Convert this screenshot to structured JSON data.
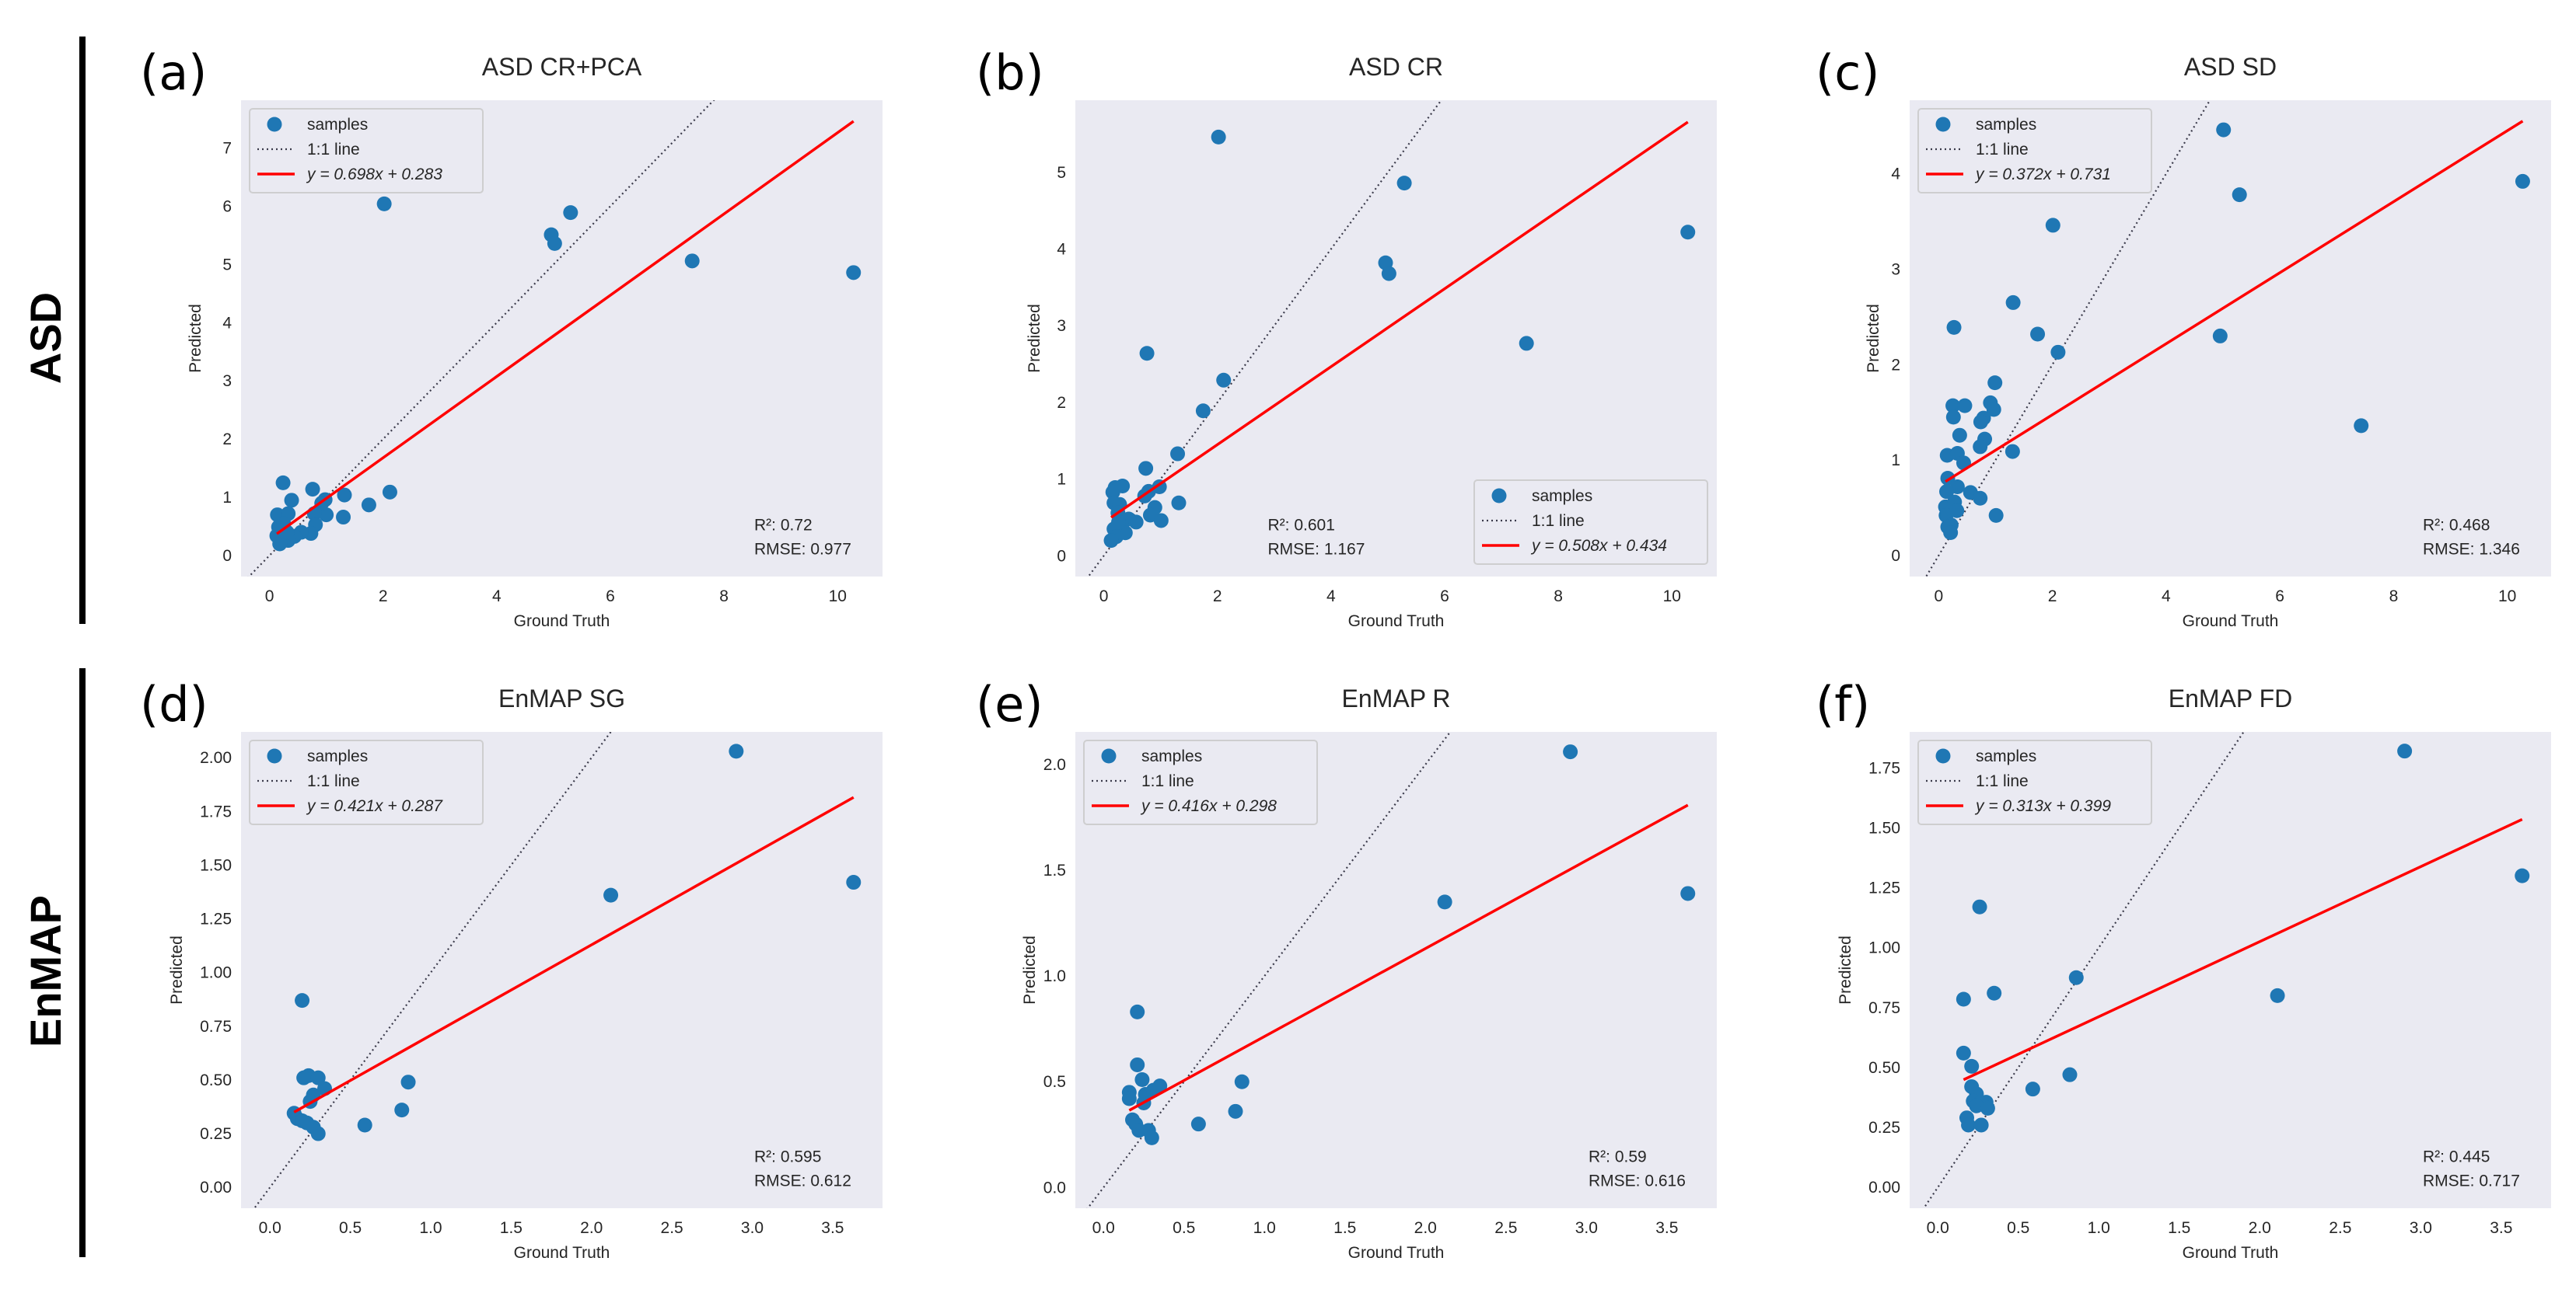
{
  "row_labels": [
    "ASD",
    "EnMAP"
  ],
  "chart_data": [
    {
      "type": "scatter",
      "letter": "(a)",
      "title": "ASD CR+PCA",
      "xlabel": "Ground Truth",
      "ylabel": "Predicted",
      "xlim": [
        -0.5,
        10.79
      ],
      "ylim": [
        -0.36,
        7.82
      ],
      "xticks": [
        0,
        2,
        4,
        6,
        8,
        10
      ],
      "xtick_labels": [
        "0",
        "2",
        "4",
        "6",
        "8",
        "10"
      ],
      "yticks": [
        0,
        1,
        2,
        3,
        4,
        5,
        6,
        7
      ],
      "ytick_labels": [
        "0",
        "1",
        "2",
        "3",
        "4",
        "5",
        "6",
        "7"
      ],
      "grid": false,
      "legend_position": "upper-left",
      "stats_position": "lower-right",
      "legend": [
        "samples",
        "1:1 line",
        "y = 0.698x + 0.283"
      ],
      "fit": {
        "slope": 0.698,
        "intercept": 0.283
      },
      "stats": [
        "R²: 0.72",
        "RMSE: 0.977"
      ],
      "colors": {
        "points": "#1f77b4",
        "fit": "#ff0000",
        "identity": "#3a3a4a",
        "background": "#eaeaf2"
      },
      "x": [
        2.02,
        5.3,
        4.96,
        5.02,
        7.44,
        10.28,
        2.12,
        1.75,
        1.32,
        1.3,
        0.76,
        0.24,
        0.39,
        0.14,
        0.33,
        1.0,
        0.98,
        0.92,
        0.79,
        0.81,
        0.73,
        0.56,
        0.44,
        0.33,
        0.18,
        0.13,
        0.16,
        0.25,
        0.22,
        0.31
      ],
      "y": [
        6.04,
        5.89,
        5.51,
        5.36,
        5.06,
        4.86,
        1.09,
        0.87,
        1.04,
        0.66,
        1.14,
        1.25,
        0.95,
        0.7,
        0.72,
        0.7,
        0.96,
        0.9,
        0.72,
        0.53,
        0.38,
        0.4,
        0.33,
        0.26,
        0.2,
        0.34,
        0.49,
        0.55,
        0.43,
        0.4
      ]
    },
    {
      "type": "scatter",
      "letter": "(b)",
      "title": "ASD CR",
      "xlabel": "Ground Truth",
      "ylabel": "Predicted",
      "xlim": [
        -0.5,
        10.79
      ],
      "ylim": [
        -0.27,
        5.94
      ],
      "xticks": [
        0,
        2,
        4,
        6,
        8,
        10
      ],
      "xtick_labels": [
        "0",
        "2",
        "4",
        "6",
        "8",
        "10"
      ],
      "yticks": [
        0,
        1,
        2,
        3,
        4,
        5
      ],
      "ytick_labels": [
        "0",
        "1",
        "2",
        "3",
        "4",
        "5"
      ],
      "grid": false,
      "legend_position": "lower-right",
      "stats_position": "lower-center",
      "legend": [
        "samples",
        "1:1 line",
        "y = 0.508x + 0.434"
      ],
      "fit": {
        "slope": 0.508,
        "intercept": 0.434
      },
      "stats": [
        "R²: 0.601",
        "RMSE: 1.167"
      ],
      "colors": {
        "points": "#1f77b4",
        "fit": "#ff0000",
        "identity": "#3a3a4a",
        "background": "#eaeaf2"
      },
      "x": [
        2.02,
        5.29,
        10.28,
        4.96,
        5.02,
        7.44,
        0.76,
        2.11,
        1.75,
        1.3,
        0.74,
        1.32,
        0.33,
        0.2,
        0.16,
        0.98,
        0.79,
        0.72,
        0.9,
        0.82,
        1.01,
        0.57,
        0.18,
        0.28,
        0.25,
        0.44,
        0.31,
        0.38,
        0.18,
        0.22,
        0.13,
        0.26
      ],
      "y": [
        5.46,
        4.86,
        4.22,
        3.82,
        3.68,
        2.77,
        2.64,
        2.29,
        1.89,
        1.33,
        1.14,
        0.69,
        0.91,
        0.89,
        0.83,
        0.9,
        0.84,
        0.78,
        0.63,
        0.53,
        0.46,
        0.44,
        0.69,
        0.67,
        0.56,
        0.48,
        0.4,
        0.3,
        0.35,
        0.25,
        0.2,
        0.44
      ]
    },
    {
      "type": "scatter",
      "letter": "(c)",
      "title": "ASD SD",
      "xlabel": "Ground Truth",
      "ylabel": "Predicted",
      "xlim": [
        -0.51,
        10.77
      ],
      "ylim": [
        -0.22,
        4.77
      ],
      "xticks": [
        0,
        2,
        4,
        6,
        8,
        10
      ],
      "xtick_labels": [
        "0",
        "2",
        "4",
        "6",
        "8",
        "10"
      ],
      "yticks": [
        0,
        1,
        2,
        3,
        4
      ],
      "ytick_labels": [
        "0",
        "1",
        "2",
        "3",
        "4"
      ],
      "grid": false,
      "legend_position": "upper-left",
      "stats_position": "lower-right",
      "legend": [
        "samples",
        "1:1 line",
        "y = 0.372x + 0.731"
      ],
      "fit": {
        "slope": 0.372,
        "intercept": 0.731
      },
      "stats": [
        "R²: 0.468",
        "RMSE: 1.346"
      ],
      "colors": {
        "points": "#1f77b4",
        "fit": "#ff0000",
        "identity": "#3a3a4a",
        "background": "#eaeaf2"
      },
      "x": [
        5.01,
        5.29,
        10.27,
        2.01,
        1.31,
        0.27,
        1.74,
        4.95,
        2.1,
        0.99,
        0.25,
        0.46,
        0.26,
        0.91,
        0.97,
        0.79,
        0.74,
        0.37,
        0.81,
        0.73,
        1.3,
        7.43,
        0.15,
        0.33,
        0.44,
        0.16,
        0.33,
        0.14,
        0.56,
        0.73,
        1.01,
        0.12,
        0.28,
        0.32,
        0.13,
        0.22,
        0.16,
        0.21
      ],
      "y": [
        4.46,
        3.78,
        3.92,
        3.46,
        2.65,
        2.39,
        2.32,
        2.3,
        2.13,
        1.81,
        1.57,
        1.57,
        1.45,
        1.6,
        1.53,
        1.44,
        1.4,
        1.26,
        1.22,
        1.14,
        1.09,
        1.36,
        1.05,
        1.07,
        0.97,
        0.81,
        0.72,
        0.67,
        0.66,
        0.6,
        0.42,
        0.51,
        0.56,
        0.47,
        0.42,
        0.32,
        0.3,
        0.24
      ]
    },
    {
      "type": "scatter",
      "letter": "(d)",
      "title": "EnMAP SG",
      "xlabel": "Ground Truth",
      "ylabel": "Predicted",
      "xlim": [
        -0.18,
        3.81
      ],
      "ylim": [
        -0.097,
        2.12
      ],
      "xticks": [
        0,
        0.5,
        1,
        1.5,
        2,
        2.5,
        3,
        3.5
      ],
      "xtick_labels": [
        "0.0",
        "0.5",
        "1.0",
        "1.5",
        "2.0",
        "2.5",
        "3.0",
        "3.5"
      ],
      "yticks": [
        0,
        0.25,
        0.5,
        0.75,
        1,
        1.25,
        1.5,
        1.75,
        2
      ],
      "ytick_labels": [
        "0.00",
        "0.25",
        "0.50",
        "0.75",
        "1.00",
        "1.25",
        "1.50",
        "1.75",
        "2.00"
      ],
      "grid": false,
      "legend_position": "upper-left",
      "stats_position": "lower-right",
      "legend": [
        "samples",
        "1:1 line",
        "y = 0.421x + 0.287"
      ],
      "fit": {
        "slope": 0.421,
        "intercept": 0.287
      },
      "stats": [
        "R²: 0.595",
        "RMSE: 0.612"
      ],
      "colors": {
        "points": "#1f77b4",
        "fit": "#ff0000",
        "identity": "#3a3a4a",
        "background": "#eaeaf2"
      },
      "x": [
        2.9,
        2.12,
        3.63,
        0.2,
        0.21,
        0.24,
        0.3,
        0.86,
        0.34,
        0.27,
        0.25,
        0.82,
        0.59,
        0.15,
        0.17,
        0.2,
        0.23,
        0.27,
        0.3
      ],
      "y": [
        2.03,
        1.36,
        1.42,
        0.87,
        0.51,
        0.52,
        0.51,
        0.49,
        0.46,
        0.43,
        0.4,
        0.36,
        0.29,
        0.345,
        0.32,
        0.31,
        0.3,
        0.28,
        0.25
      ]
    },
    {
      "type": "scatter",
      "letter": "(e)",
      "title": "EnMAP R",
      "xlabel": "Ground Truth",
      "ylabel": "Predicted",
      "xlim": [
        -0.175,
        3.81
      ],
      "ylim": [
        -0.098,
        2.154
      ],
      "xticks": [
        0,
        0.5,
        1,
        1.5,
        2,
        2.5,
        3,
        3.5
      ],
      "xtick_labels": [
        "0.0",
        "0.5",
        "1.0",
        "1.5",
        "2.0",
        "2.5",
        "3.0",
        "3.5"
      ],
      "yticks": [
        0,
        0.5,
        1,
        1.5,
        2
      ],
      "ytick_labels": [
        "0.0",
        "0.5",
        "1.0",
        "1.5",
        "2.0"
      ],
      "grid": false,
      "legend_position": "upper-left",
      "stats_position": "lower-right",
      "legend": [
        "samples",
        "1:1 line",
        "y = 0.416x + 0.298"
      ],
      "fit": {
        "slope": 0.416,
        "intercept": 0.298
      },
      "stats": [
        "R²: 0.59",
        "RMSE: 0.616"
      ],
      "colors": {
        "points": "#1f77b4",
        "fit": "#ff0000",
        "identity": "#3a3a4a",
        "background": "#eaeaf2"
      },
      "x": [
        2.9,
        2.12,
        3.63,
        0.21,
        0.21,
        0.24,
        0.86,
        0.16,
        0.16,
        0.26,
        0.31,
        0.35,
        0.25,
        0.82,
        0.59,
        0.18,
        0.2,
        0.22,
        0.28,
        0.3
      ],
      "y": [
        2.06,
        1.35,
        1.39,
        0.83,
        0.58,
        0.51,
        0.5,
        0.45,
        0.42,
        0.44,
        0.46,
        0.48,
        0.4,
        0.36,
        0.3,
        0.32,
        0.3,
        0.27,
        0.27,
        0.235
      ]
    },
    {
      "type": "scatter",
      "letter": "(f)",
      "title": "EnMAP FD",
      "xlabel": "Ground Truth",
      "ylabel": "Predicted",
      "xlim": [
        -0.175,
        3.81
      ],
      "ylim": [
        -0.087,
        1.9
      ],
      "xticks": [
        0,
        0.5,
        1,
        1.5,
        2,
        2.5,
        3,
        3.5
      ],
      "xtick_labels": [
        "0.0",
        "0.5",
        "1.0",
        "1.5",
        "2.0",
        "2.5",
        "3.0",
        "3.5"
      ],
      "yticks": [
        0,
        0.25,
        0.5,
        0.75,
        1,
        1.25,
        1.5,
        1.75
      ],
      "ytick_labels": [
        "0.00",
        "0.25",
        "0.50",
        "0.75",
        "1.00",
        "1.25",
        "1.50",
        "1.75"
      ],
      "grid": false,
      "legend_position": "upper-left",
      "stats_position": "lower-right",
      "legend": [
        "samples",
        "1:1 line",
        "y = 0.313x + 0.399"
      ],
      "fit": {
        "slope": 0.313,
        "intercept": 0.399
      },
      "stats": [
        "R²: 0.445",
        "RMSE: 0.717"
      ],
      "colors": {
        "points": "#1f77b4",
        "fit": "#ff0000",
        "identity": "#3a3a4a",
        "background": "#eaeaf2"
      },
      "x": [
        2.9,
        3.63,
        0.26,
        0.86,
        2.11,
        0.16,
        0.35,
        0.16,
        0.21,
        0.82,
        0.59,
        0.21,
        0.24,
        0.22,
        0.26,
        0.3,
        0.24,
        0.31,
        0.18,
        0.19,
        0.27
      ],
      "y": [
        1.82,
        1.3,
        1.17,
        0.875,
        0.8,
        0.785,
        0.81,
        0.56,
        0.505,
        0.47,
        0.41,
        0.42,
        0.39,
        0.36,
        0.35,
        0.355,
        0.34,
        0.33,
        0.29,
        0.26,
        0.26
      ]
    }
  ]
}
